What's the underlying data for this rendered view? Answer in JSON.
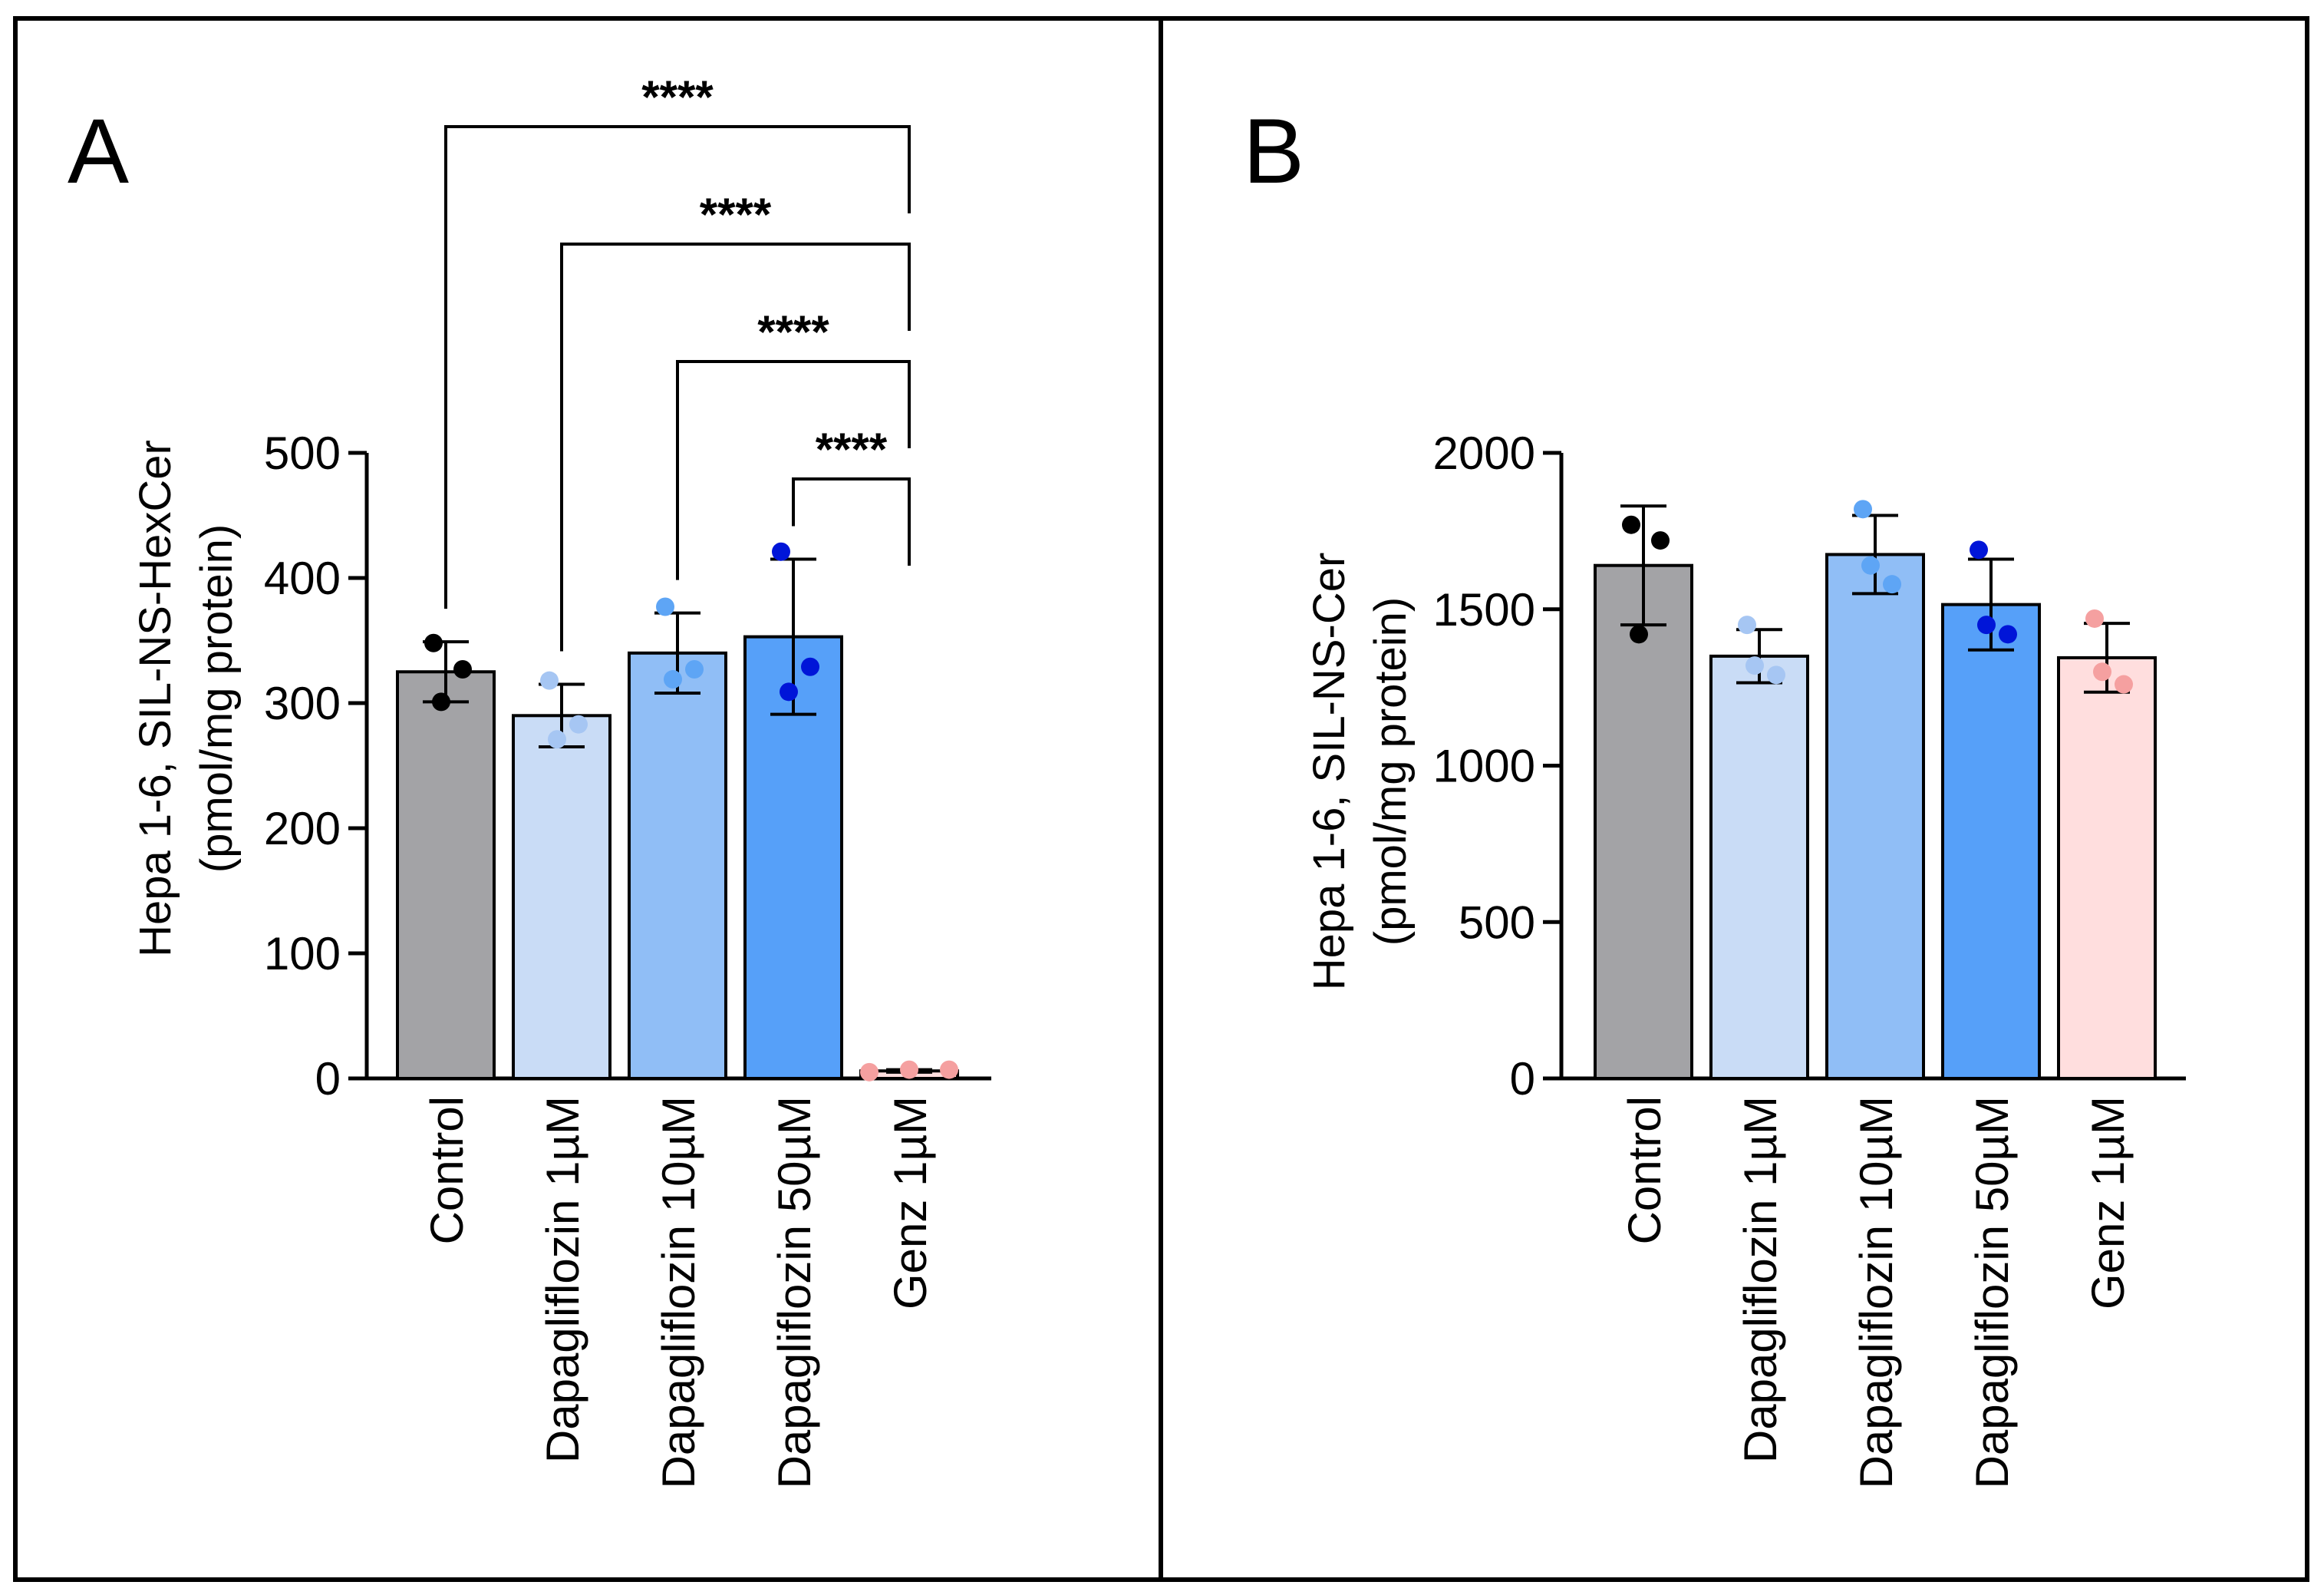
{
  "chart_data": [
    {
      "panel": "A",
      "type": "bar",
      "categories": [
        "Control",
        "Dapagliflozin 1µM",
        "Dapagliflozin 10µM",
        "Dapagliflozin 50µM",
        "Genz 1µM"
      ],
      "values": [
        325,
        290,
        340,
        353,
        6
      ],
      "errors": [
        24,
        25,
        32,
        62,
        1
      ],
      "points": [
        [
          348,
          327,
          301
        ],
        [
          318,
          283,
          271
        ],
        [
          377,
          327,
          319
        ],
        [
          421,
          329,
          309
        ],
        [
          5,
          7,
          7
        ]
      ],
      "bar_colors": [
        "#a3a3a6",
        "#c9dcf6",
        "#90bef6",
        "#56a0f9",
        "#ffdede"
      ],
      "point_colors": [
        "#000000",
        "#a6c6f3",
        "#5ea5f5",
        "#0015d8",
        "#f5a0a0"
      ],
      "ylabel_line1": "Hepa 1-6, SIL-NS-HexCer",
      "ylabel_line2": "(pmol/mg protein)",
      "yticks": [
        0,
        100,
        200,
        300,
        400,
        500
      ],
      "ylim": [
        0,
        500
      ],
      "significance": [
        {
          "from": 0,
          "to": 4,
          "label": "****"
        },
        {
          "from": 1,
          "to": 4,
          "label": "****"
        },
        {
          "from": 2,
          "to": 4,
          "label": "****"
        },
        {
          "from": 3,
          "to": 4,
          "label": "****"
        }
      ]
    },
    {
      "panel": "B",
      "type": "bar",
      "categories": [
        "Control",
        "Dapagliflozin 1µM",
        "Dapagliflozin 10µM",
        "Dapagliflozin 50µM",
        "Genz 1µM"
      ],
      "values": [
        1640,
        1350,
        1675,
        1515,
        1345
      ],
      "errors": [
        190,
        85,
        125,
        145,
        110
      ],
      "points": [
        [
          1770,
          1720,
          1420
        ],
        [
          1450,
          1290,
          1320
        ],
        [
          1820,
          1580,
          1640
        ],
        [
          1690,
          1420,
          1450
        ],
        [
          1470,
          1260,
          1300
        ]
      ],
      "bar_colors": [
        "#a3a3a6",
        "#c9dcf6",
        "#90bef6",
        "#56a0f9",
        "#ffdede"
      ],
      "point_colors": [
        "#000000",
        "#a6c6f3",
        "#5ea5f5",
        "#0015d8",
        "#f5a0a0"
      ],
      "ylabel_line1": "Hepa 1-6, SIL-NS-Cer",
      "ylabel_line2": "(pmol/mg protein)",
      "yticks": [
        0,
        500,
        1000,
        1500,
        2000
      ],
      "ylim": [
        0,
        2000
      ],
      "significance": []
    }
  ]
}
